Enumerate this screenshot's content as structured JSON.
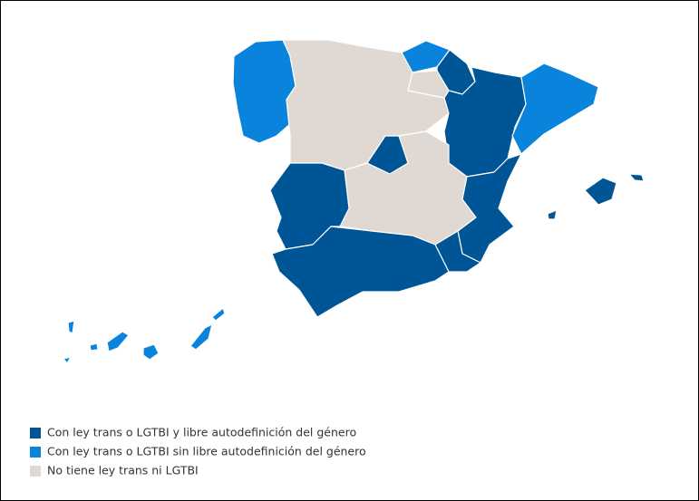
{
  "legend": [
    {
      "label": "Con ley trans o LGTBI y libre autodefinición del género",
      "color": "#005596"
    },
    {
      "label": "Con ley trans o LGTBI sin libre autodefinición del género",
      "color": "#0a83dc"
    },
    {
      "label": "No tiene ley trans ni LGTBI",
      "color": "#e0d8d3"
    }
  ]
}
